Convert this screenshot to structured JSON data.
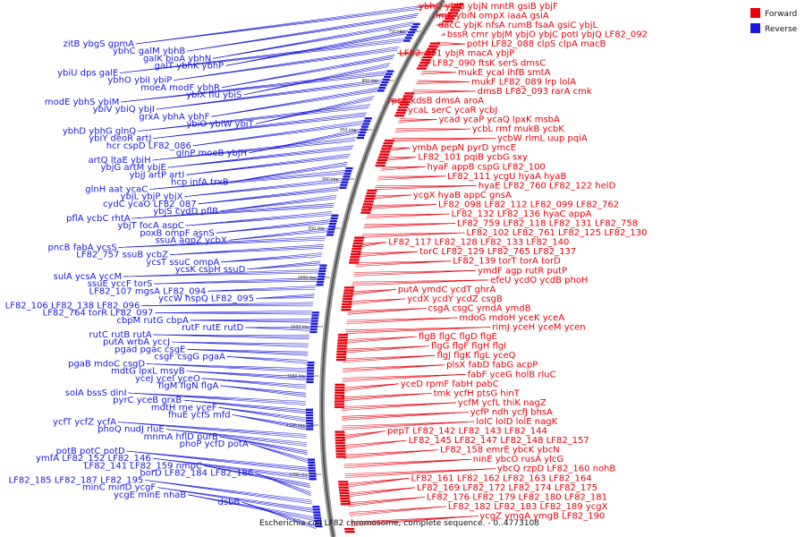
{
  "caption": "Escherichia coli LF82 chromosome, complete sequence. - 0..4773108",
  "legend": [
    {
      "label": "Forward",
      "color": "#e8000b"
    },
    {
      "label": "Reverse",
      "color": "#1a1adc"
    }
  ],
  "colors": {
    "forward": "#e8000b",
    "reverse": "#1a1adc",
    "backbone": "#555555"
  },
  "ticks": [
    "750 kbp",
    "800 kbp",
    "850 kbp",
    "900 kbp",
    "950 kbp",
    "1000 kbp",
    "1050 kbp",
    "1100 kbp",
    "1150 kbp",
    "1200 kbp"
  ],
  "forward_labels": [
    "ybhQ ybiB",
    "ybjN",
    "mntR",
    "gsiB ybjF",
    "rimK",
    "ybiN ompX",
    "iaaA",
    "gsiA",
    "dacC ybjK",
    "nfsA",
    "rumB",
    "fsaA gsiC ybjL",
    "bssR cmr ybjM ybjO",
    "ybjC potI",
    "ybjQ",
    "LF82_092",
    "potH",
    "LF82_088",
    "clpS clpA",
    "macB",
    "LF82_091",
    "ybjR",
    "macA",
    "ybjP",
    "LF82_090",
    "ftsK",
    "serS",
    "dmsC",
    "mukE",
    "ycaI",
    "ihfB",
    "smtA",
    "mukF",
    "LF82_089",
    "lrp",
    "lolA",
    "dmsB",
    "LF82_093",
    "rarA",
    "cmk",
    "rpsA",
    "kdsB",
    "dmsA",
    "aroA",
    "ycaL",
    "serC",
    "ycaR",
    "ycbJ",
    "ycad ycaP",
    "ycaQ",
    "lpxK",
    "msbA",
    "ycbL",
    "rmf",
    "mukB",
    "ycbK",
    "ycbW",
    "rlmL",
    "uup",
    "pqiA",
    "ymbA",
    "pepN",
    "pyrD",
    "ymcE",
    "LF82_101",
    "pqiB",
    "ycbG",
    "sxy",
    "hyaF",
    "appB",
    "cspG",
    "LF82_100",
    "LF82_111",
    "ycgU",
    "hyaA",
    "hyaB",
    "hyaE",
    "LF82_760",
    "LF82_122",
    "helD",
    "ycgX",
    "hyaB",
    "appC",
    "gnsA",
    "LF82_098",
    "LF82_112",
    "LF82_099",
    "LF82_762",
    "LF82_132",
    "LF82_136",
    "hyaC",
    "appA",
    "LF82_759",
    "LF82_118",
    "LF82_131",
    "LF82_758",
    "LF82_102",
    "LF82_761",
    "LF82_125",
    "LF82_130",
    "LF82_117",
    "LF82_128",
    "LF82_133",
    "LF82_140",
    "torC",
    "LF82_129",
    "LF82_765",
    "LF82_137",
    "LF82_139",
    "torT",
    "torA",
    "torD",
    "ymdF",
    "agp",
    "rutR",
    "putP",
    "efeU",
    "ycdO",
    "ycdB",
    "phoH",
    "putA",
    "ymdC",
    "ycdT",
    "ghrA",
    "ycdX",
    "ycdY",
    "ycdZ",
    "csgB",
    "csgA",
    "csgC",
    "ymdA",
    "ymdB",
    "mdoG",
    "mdoH",
    "yceK",
    "yceA",
    "rimJ",
    "yceH",
    "yceM",
    "ycen",
    "flgB",
    "flgC",
    "flgD",
    "flgE",
    "flgG",
    "flgF",
    "flgH",
    "flgI",
    "flgJ",
    "flgK",
    "flgL",
    "yceQ",
    "plsX",
    "fabD",
    "fabG",
    "acpP",
    "fabF",
    "yceG",
    "holB",
    "rluC",
    "yceD",
    "rpmF",
    "fabH",
    "pabC",
    "tmk",
    "ycfH",
    "ptsG",
    "hinT",
    "ycfM",
    "ycfL",
    "thiK",
    "nagZ",
    "ycfP",
    "ndh",
    "ycfJ",
    "bhsA",
    "lolC",
    "lolD",
    "lolE",
    "nagK",
    "pepT",
    "LF82_142",
    "LF82_143",
    "LF82_144",
    "LF82_145",
    "LF82_147",
    "LF82_148",
    "LF82_157",
    "LF82_158",
    "emrE",
    "ybcK",
    "ybcN",
    "ninE",
    "ybcO",
    "rusA",
    "ylcG",
    "ybcQ",
    "rzpD",
    "LF82_160",
    "nohB",
    "LF82_161",
    "LF82_162",
    "LF82_163",
    "LF82_164",
    "LF82_169",
    "LF82_172",
    "LF82_174",
    "LF82_175",
    "LF82_176",
    "LF82_179",
    "LF82_180",
    "LF82_181",
    "LF82_182",
    "LF82_183",
    "LF82_189",
    "ycgX",
    "ycgZ",
    "ymgA",
    "ymgB",
    "LF82_190"
  ],
  "reverse_labels": [
    "zitB",
    "ybgS",
    "gpmA",
    "ybhC",
    "galM",
    "ybhB",
    "galK",
    "bioA",
    "ybhN",
    "galT",
    "ybhK",
    "ybhP",
    "ybiU",
    "dps",
    "galE",
    "ybhO",
    "ybiI",
    "ybiP",
    "moeA",
    "modF",
    "ybhR",
    "ybiX",
    "fiu",
    "ybiS",
    "modE",
    "ybhS",
    "ybiM",
    "ybiV",
    "ybiQ",
    "ybjI",
    "grxA",
    "ybhA",
    "ybhF",
    "ybiO",
    "ybiW",
    "ybiT",
    "ybhD",
    "ybhG",
    "glnQ",
    "ybiY",
    "deoR",
    "artJ",
    "hcr",
    "cspD",
    "LF82_086",
    "glnP",
    "moeB",
    "ybjH",
    "artQ",
    "ltaE",
    "ybiH",
    "ybjG",
    "artM",
    "ybjE",
    "ybjJ",
    "artP",
    "artI",
    "hcp",
    "infA",
    "trxB",
    "glnH",
    "aat",
    "ycaC",
    "ybjL",
    "ybjP",
    "ybjX",
    "cydC",
    "ycaO",
    "LF82_087",
    "ybjS",
    "cydD",
    "pflB",
    "pflA",
    "ycbC",
    "rhtA",
    "ybjT",
    "focA",
    "aspC",
    "poxB",
    "ompF",
    "asnS",
    "ssuA",
    "aqpZ",
    "ycbX",
    "pncB",
    "fabA",
    "ycsS",
    "LF82_757",
    "ssuB",
    "ycbZ",
    "ycsT",
    "ssuC",
    "ompA",
    "ycsK",
    "cspH",
    "ssuD",
    "sulA",
    "ycsA",
    "yccM",
    "ssuE",
    "yccF",
    "torS",
    "LF82_107",
    "mgsA",
    "LF82_094",
    "yccW",
    "hspQ",
    "LF82_095",
    "LF82_106",
    "LF82_138",
    "LF82_096",
    "LF82_764",
    "torR",
    "LF82_097",
    "cbpM",
    "rutG",
    "cbpA",
    "rutF",
    "rutE",
    "rutD",
    "rutC",
    "rutB",
    "rutA",
    "putA",
    "wrbA",
    "yccJ",
    "pgad",
    "pgac",
    "csgE",
    "csgF",
    "csgG",
    "pgaA",
    "pgaB",
    "mdoC",
    "csgD",
    "mdtG",
    "lpxL",
    "msyB",
    "yceJ",
    "yceI",
    "yceO",
    "flgM",
    "flgN",
    "flgA",
    "solA",
    "bssS",
    "dinI",
    "pyrC",
    "yceB",
    "grxB",
    "mdtH",
    "rne",
    "yceF",
    "fhuE",
    "ycfS",
    "mfd",
    "ycfT",
    "ycfZ",
    "ycfA",
    "phoQ",
    "nudJ",
    "rluE",
    "mnmA",
    "hflD",
    "purB",
    "phoP",
    "ycfD",
    "potA",
    "potB",
    "potC",
    "potD",
    "ymfA",
    "LF82_152",
    "LF82_146",
    "LF82_141",
    "LF82_159",
    "nmpC",
    "borD",
    "LF82_184",
    "LF82_186",
    "LF82_185",
    "LF82_187",
    "LF82_195",
    "minC",
    "minD",
    "ycgF",
    "ycgE",
    "minE",
    "nhaB",
    "dsbB"
  ]
}
